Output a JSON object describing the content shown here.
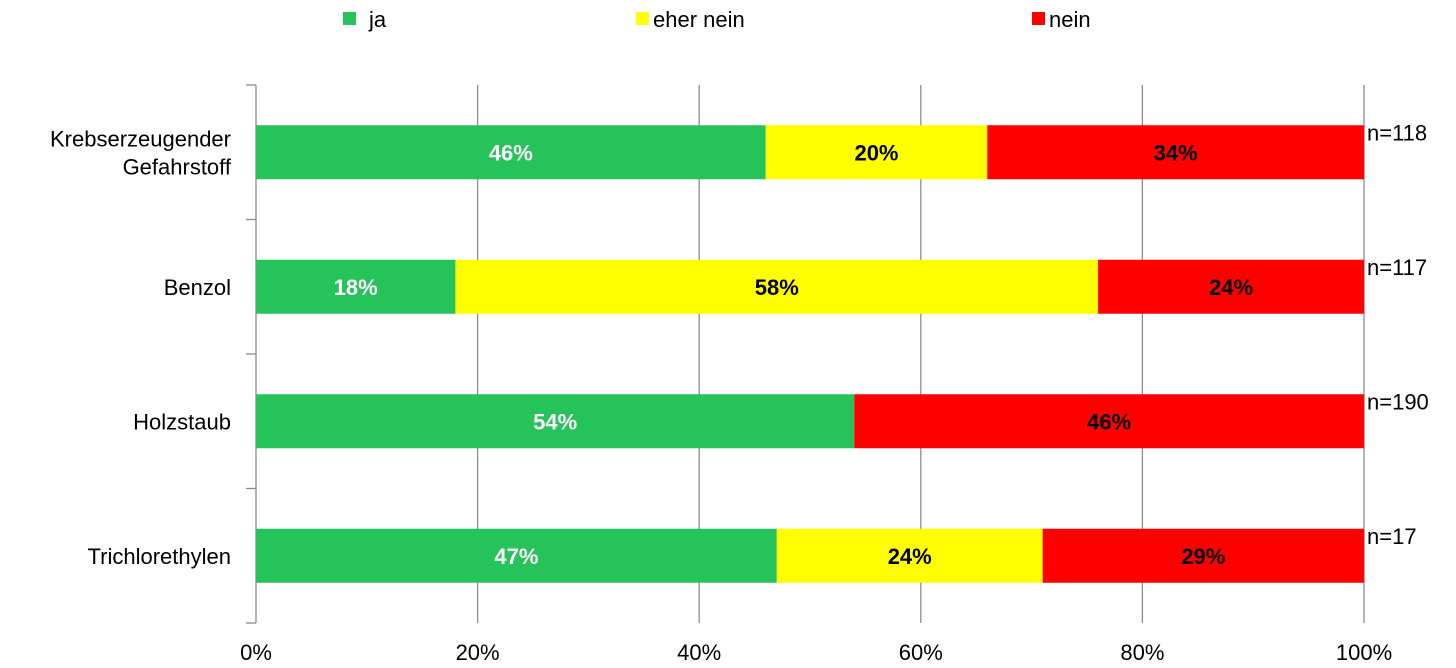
{
  "chart_data": {
    "type": "bar",
    "orientation": "horizontal",
    "stacked": true,
    "categories": [
      [
        "Krebserzeugender",
        "Gefahrstoff"
      ],
      [
        "Benzol"
      ],
      [
        "Holzstaub"
      ],
      [
        "Trichlorethylen"
      ]
    ],
    "series": [
      {
        "name": "ja",
        "color": "#26C25A",
        "label_color": "#FFFFFF",
        "values": [
          46,
          18,
          54,
          47
        ],
        "labels": [
          "46%",
          "18%",
          "54%",
          "47%"
        ]
      },
      {
        "name": "eher nein",
        "color": "#FFFF00",
        "label_color": "#000000",
        "values": [
          20,
          58,
          0,
          24
        ],
        "labels": [
          "20%",
          "58%",
          "",
          "24%"
        ]
      },
      {
        "name": "nein",
        "color": "#FF0000",
        "label_color": "#000000",
        "values": [
          34,
          24,
          46,
          29
        ],
        "labels": [
          "34%",
          "24%",
          "46%",
          "29%"
        ]
      }
    ],
    "sample_sizes": [
      "n=118",
      "n=117",
      "n=190",
      "n=17"
    ],
    "xlim": [
      0,
      100
    ],
    "xticks": [
      0,
      20,
      40,
      60,
      80,
      100
    ],
    "xtick_labels": [
      "0%",
      "20%",
      "40%",
      "60%",
      "80%",
      "100%"
    ],
    "grid": true,
    "legend_position": "top",
    "title": "",
    "xlabel": "",
    "ylabel": ""
  }
}
